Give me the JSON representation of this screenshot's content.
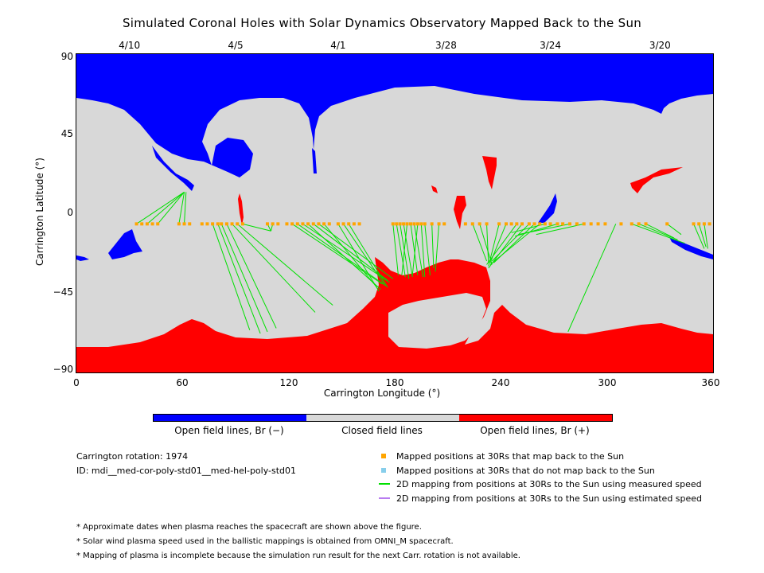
{
  "title": "Simulated Coronal Holes with Solar Dynamics Observatory Mapped Back to the Sun",
  "colors": {
    "open_negative": "#0000ff",
    "closed": "#d8d8d8",
    "open_positive": "#ff0000",
    "mapped_point": "#ffa500",
    "unmapped_point": "#87ceeb",
    "measured_line": "#00e000",
    "estimated_line": "#b87cf0"
  },
  "chart_data": {
    "type": "map",
    "xlabel": "Carrington Longitude (°)",
    "ylabel": "Carrington Latitude (°)",
    "xlim": [
      0,
      360
    ],
    "ylim": [
      -90,
      90
    ],
    "xticks": [
      "0",
      "60",
      "120",
      "180",
      "240",
      "300",
      "360"
    ],
    "yticks": [
      "90",
      "45",
      "0",
      "−45",
      "−90"
    ],
    "top_dates": [
      {
        "label": "4/10",
        "lon": 30
      },
      {
        "label": "4/5",
        "lon": 90
      },
      {
        "label": "4/1",
        "lon": 148
      },
      {
        "label": "3/28",
        "lon": 209
      },
      {
        "label": "3/24",
        "lon": 268
      },
      {
        "label": "3/20",
        "lon": 330
      }
    ],
    "mapped_positions_lat": -6,
    "mapped_positions_lon": [
      34,
      37,
      40,
      43,
      46,
      58,
      61,
      64,
      71,
      74,
      77,
      80,
      82,
      85,
      88,
      91,
      94,
      108,
      111,
      114,
      119,
      122,
      125,
      128,
      131,
      134,
      137,
      140,
      143,
      148,
      151,
      154,
      157,
      160,
      179,
      181,
      183,
      185,
      187,
      189,
      191,
      193,
      195,
      197,
      201,
      205,
      208,
      220,
      224,
      228,
      232,
      239,
      243,
      246,
      249,
      252,
      256,
      259,
      262,
      265,
      268,
      272,
      275,
      279,
      283,
      287,
      291,
      295,
      299,
      308,
      314,
      318,
      322,
      334,
      349,
      352,
      355,
      358
    ],
    "mapping_lines": [
      [
        [
          34,
          -6
        ],
        [
          61,
          12
        ]
      ],
      [
        [
          40,
          -6
        ],
        [
          61,
          12
        ]
      ],
      [
        [
          46,
          -6
        ],
        [
          61,
          12
        ]
      ],
      [
        [
          58,
          -6
        ],
        [
          61,
          12
        ]
      ],
      [
        [
          61,
          -6
        ],
        [
          62,
          12
        ]
      ],
      [
        [
          77,
          -6
        ],
        [
          98,
          -66
        ]
      ],
      [
        [
          80,
          -6
        ],
        [
          104,
          -68
        ]
      ],
      [
        [
          82,
          -6
        ],
        [
          108,
          -67
        ]
      ],
      [
        [
          85,
          -6
        ],
        [
          113,
          -65
        ]
      ],
      [
        [
          88,
          -6
        ],
        [
          135,
          -56
        ]
      ],
      [
        [
          91,
          -6
        ],
        [
          145,
          -52
        ]
      ],
      [
        [
          94,
          -6
        ],
        [
          110,
          -10
        ]
      ],
      [
        [
          108,
          -6
        ],
        [
          110,
          -10
        ]
      ],
      [
        [
          111,
          -6
        ],
        [
          110,
          -10
        ]
      ],
      [
        [
          122,
          -6
        ],
        [
          173,
          -40
        ]
      ],
      [
        [
          125,
          -6
        ],
        [
          175,
          -41
        ]
      ],
      [
        [
          128,
          -6
        ],
        [
          177,
          -39
        ]
      ],
      [
        [
          131,
          -6
        ],
        [
          172,
          -43
        ]
      ],
      [
        [
          134,
          -6
        ],
        [
          176,
          -38
        ]
      ],
      [
        [
          137,
          -6
        ],
        [
          179,
          -37
        ]
      ],
      [
        [
          140,
          -6
        ],
        [
          170,
          -42
        ]
      ],
      [
        [
          148,
          -6
        ],
        [
          171,
          -44
        ]
      ],
      [
        [
          151,
          -6
        ],
        [
          174,
          -40
        ]
      ],
      [
        [
          154,
          -6
        ],
        [
          176,
          -42
        ]
      ],
      [
        [
          179,
          -6
        ],
        [
          182,
          -35
        ]
      ],
      [
        [
          181,
          -6
        ],
        [
          186,
          -36
        ]
      ],
      [
        [
          183,
          -6
        ],
        [
          188,
          -37
        ]
      ],
      [
        [
          185,
          -6
        ],
        [
          190,
          -36
        ]
      ],
      [
        [
          187,
          -6
        ],
        [
          184,
          -35
        ]
      ],
      [
        [
          189,
          -6
        ],
        [
          193,
          -35
        ]
      ],
      [
        [
          191,
          -6
        ],
        [
          196,
          -36
        ]
      ],
      [
        [
          193,
          -6
        ],
        [
          190,
          -35
        ]
      ],
      [
        [
          195,
          -6
        ],
        [
          197,
          -36
        ]
      ],
      [
        [
          197,
          -6
        ],
        [
          200,
          -35
        ]
      ],
      [
        [
          201,
          -6
        ],
        [
          202,
          -31
        ]
      ],
      [
        [
          205,
          -6
        ],
        [
          203,
          -33
        ]
      ],
      [
        [
          224,
          -6
        ],
        [
          232,
          -27
        ]
      ],
      [
        [
          228,
          -6
        ],
        [
          235,
          -29
        ]
      ],
      [
        [
          232,
          -6
        ],
        [
          233,
          -28
        ]
      ],
      [
        [
          239,
          -6
        ],
        [
          233,
          -30
        ]
      ],
      [
        [
          243,
          -6
        ],
        [
          234,
          -28
        ]
      ],
      [
        [
          249,
          -6
        ],
        [
          232,
          -29
        ]
      ],
      [
        [
          252,
          -6
        ],
        [
          233,
          -31
        ]
      ],
      [
        [
          256,
          -6
        ],
        [
          235,
          -27
        ]
      ],
      [
        [
          259,
          -6
        ],
        [
          236,
          -28
        ]
      ],
      [
        [
          262,
          -6
        ],
        [
          234,
          -29
        ]
      ],
      [
        [
          265,
          -6
        ],
        [
          246,
          -11
        ]
      ],
      [
        [
          272,
          -6
        ],
        [
          248,
          -13
        ]
      ],
      [
        [
          279,
          -6
        ],
        [
          250,
          -12
        ]
      ],
      [
        [
          287,
          -6
        ],
        [
          260,
          -12
        ]
      ],
      [
        [
          305,
          -6
        ],
        [
          278,
          -67
        ]
      ],
      [
        [
          314,
          -6
        ],
        [
          344,
          -17
        ]
      ],
      [
        [
          318,
          -6
        ],
        [
          340,
          -15
        ]
      ],
      [
        [
          322,
          -6
        ],
        [
          338,
          -14
        ]
      ],
      [
        [
          334,
          -6
        ],
        [
          342,
          -12
        ]
      ],
      [
        [
          349,
          -6
        ],
        [
          355,
          -20
        ]
      ],
      [
        [
          352,
          -6
        ],
        [
          356,
          -19
        ]
      ],
      [
        [
          355,
          -6
        ],
        [
          357,
          -20
        ]
      ]
    ],
    "colorbar": [
      {
        "label": "Open field lines, Br (−)",
        "color": "#0000ff"
      },
      {
        "label": "Closed field lines",
        "color": "#d8d8d8"
      },
      {
        "label": "Open field lines, Br (+)",
        "color": "#ff0000"
      }
    ]
  },
  "info": {
    "rotation": "Carrington rotation: 1974",
    "id": "ID: mdi__med-cor-poly-std01__med-hel-poly-std01"
  },
  "legend": [
    {
      "label": "Mapped positions at 30Rs that map back to the Sun",
      "kind": "square",
      "color": "#ffa500"
    },
    {
      "label": "Mapped positions at 30Rs that do not map back to the Sun",
      "kind": "square",
      "color": "#87ceeb"
    },
    {
      "label": "2D mapping from positions at 30Rs to the Sun using measured speed",
      "kind": "line",
      "color": "#00e000"
    },
    {
      "label": "2D mapping from positions at 30Rs to the Sun using estimated speed",
      "kind": "line",
      "color": "#b87cf0"
    }
  ],
  "notes": [
    "* Approximate dates when plasma reaches the spacecraft are shown above the figure.",
    "* Solar wind plasma speed used in the ballistic mappings is obtained from OMNI_M spacecraft.",
    "* Mapping of plasma is incomplete because the simulation run result for the next Carr. rotation is not available."
  ]
}
